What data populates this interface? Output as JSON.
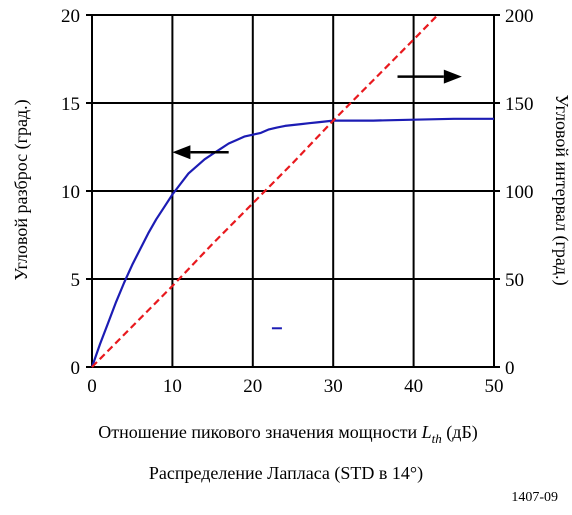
{
  "chart_data": {
    "type": "line",
    "xlabel": "Отношение пикового значения мощности L_th (дБ)",
    "xlabel_parts": {
      "before": "Отношение пикового значения мощности ",
      "symbol": "L",
      "subscript": "th",
      "after": " (дБ)"
    },
    "ylabel_left": "Угловой разброс (град.)",
    "ylabel_right": "Угловой интервал (град.)",
    "xlim": [
      0,
      50
    ],
    "ylim_left": [
      0,
      20
    ],
    "ylim_right": [
      0,
      200
    ],
    "x_ticks": [
      "0",
      "10",
      "20",
      "30",
      "40",
      "50"
    ],
    "y_left_ticks": [
      "0",
      "5",
      "10",
      "15",
      "20"
    ],
    "y_right_ticks": [
      "0",
      "50",
      "100",
      "150",
      "200"
    ],
    "grid": true,
    "series": [
      {
        "axis": "left",
        "color": "#1c1cb4",
        "style": "solid",
        "x": [
          0,
          1,
          2,
          3,
          4,
          5,
          6,
          7,
          8,
          9,
          10,
          11,
          12,
          13,
          14,
          15,
          16,
          17,
          18,
          19,
          20,
          21,
          22,
          23,
          24,
          25,
          26,
          27,
          28,
          29,
          30,
          32,
          35,
          40,
          45,
          50
        ],
        "y": [
          0,
          1.3,
          2.5,
          3.7,
          4.8,
          5.8,
          6.7,
          7.6,
          8.4,
          9.1,
          9.8,
          10.4,
          11.0,
          11.4,
          11.8,
          12.1,
          12.4,
          12.7,
          12.9,
          13.1,
          13.2,
          13.3,
          13.5,
          13.6,
          13.7,
          13.75,
          13.8,
          13.85,
          13.9,
          13.95,
          14.0,
          14.0,
          14.0,
          14.05,
          14.1,
          14.1
        ]
      },
      {
        "axis": "right",
        "color": "#e8191e",
        "style": "dashed",
        "x": [
          0,
          5,
          10,
          15,
          20,
          25,
          30,
          35,
          40,
          43
        ],
        "y": [
          0,
          23,
          46,
          70,
          93,
          116,
          140,
          163,
          186,
          200
        ]
      }
    ],
    "arrows": [
      {
        "direction": "left",
        "x_from": 17,
        "x_to": 10,
        "y_left": 12.2
      },
      {
        "direction": "right",
        "x_from": 38,
        "x_to": 46,
        "y_left": 16.5
      }
    ],
    "stray_mark": {
      "x": 23,
      "y_left": 2.2,
      "color": "#1c1cb4"
    }
  },
  "caption": "Распределение Лапласа (STD в 14°)",
  "figure_number": "1407-09"
}
